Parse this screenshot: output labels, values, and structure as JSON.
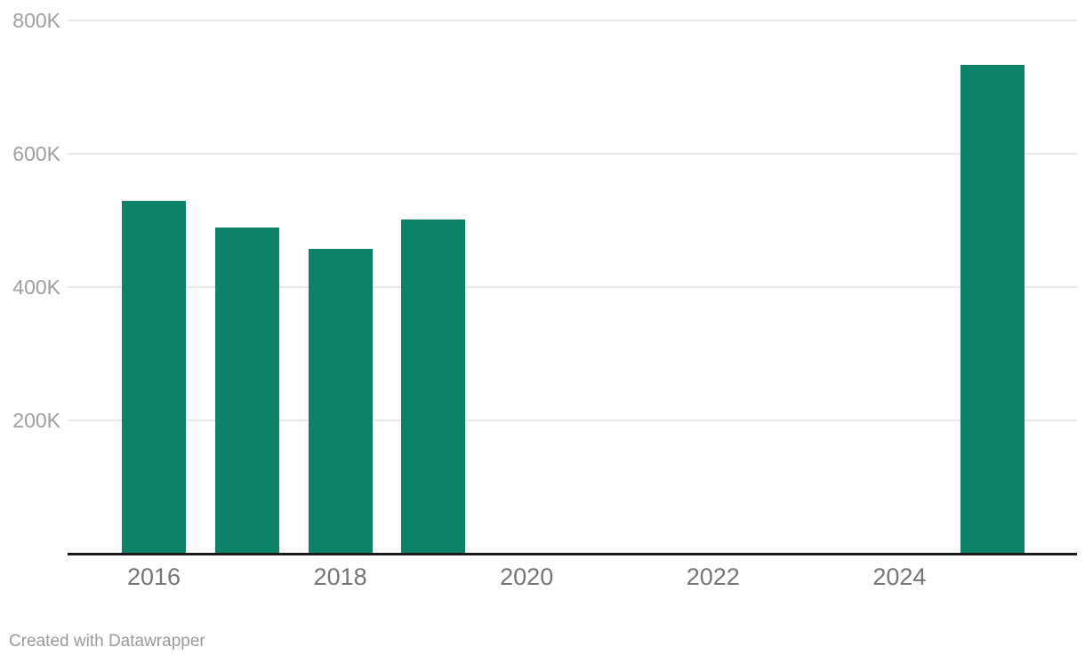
{
  "chart": {
    "footer": "Created with Datawrapper",
    "colors": {
      "bar": "#0d8268",
      "grid": "#e8e8e8",
      "axis": "#1a1a1a",
      "y_label": "#a0a0a0",
      "x_label": "#757575",
      "footer_text": "#9b9b9b",
      "background": "#ffffff"
    }
  },
  "chart_data": {
    "type": "bar",
    "title": "",
    "xlabel": "",
    "ylabel": "",
    "categories": [
      "2016",
      "2017",
      "2018",
      "2019",
      "2020",
      "2021",
      "2022",
      "2023",
      "2024",
      "2025"
    ],
    "values": [
      529000,
      489000,
      457000,
      501000,
      null,
      null,
      null,
      null,
      null,
      733000
    ],
    "ylim": [
      0,
      800000
    ],
    "grid": true,
    "legend": false,
    "y_ticks": [
      {
        "value": 800000,
        "label": "800K"
      },
      {
        "value": 600000,
        "label": "600K"
      },
      {
        "value": 400000,
        "label": "400K"
      },
      {
        "value": 200000,
        "label": "200K"
      }
    ],
    "x_ticks": [
      {
        "year": 2016,
        "label": "2016"
      },
      {
        "year": 2018,
        "label": "2018"
      },
      {
        "year": 2020,
        "label": "2020"
      },
      {
        "year": 2022,
        "label": "2022"
      },
      {
        "year": 2024,
        "label": "2024"
      }
    ]
  }
}
